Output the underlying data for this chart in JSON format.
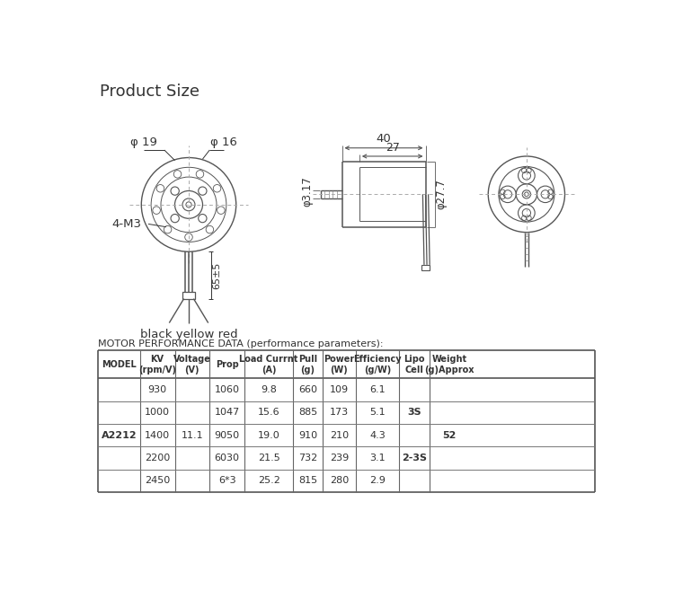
{
  "title": "Product Size",
  "bg_color": "#ffffff",
  "table_title": "MOTOR PERFORMANCE DATA (performance parameters):",
  "col_headers": [
    "MODEL",
    "KV\n(rpm/V)",
    "Voltage\n(V)",
    "Prop",
    "Load Currnt\n(A)",
    "Pull\n(g)",
    "Power\n(W)",
    "Efficiency\n(g/W)",
    "Lipo\nCell",
    "Weight\n(g)Approx"
  ],
  "table_data": [
    [
      "",
      "930",
      "",
      "1060",
      "9.8",
      "660",
      "109",
      "6.1",
      "",
      ""
    ],
    [
      "",
      "1000",
      "",
      "1047",
      "15.6",
      "885",
      "173",
      "5.1",
      "3S",
      ""
    ],
    [
      "A2212",
      "1400",
      "11.1",
      "9050",
      "19.0",
      "910",
      "210",
      "4.3",
      "",
      "52"
    ],
    [
      "",
      "2200",
      "",
      "6030",
      "21.5",
      "732",
      "239",
      "3.1",
      "2-3S",
      ""
    ],
    [
      "",
      "2450",
      "",
      "6*3",
      "25.2",
      "815",
      "280",
      "2.9",
      "",
      ""
    ]
  ],
  "phi19": "φ 19",
  "phi16": "φ 16",
  "four_m3": "4-M3",
  "wire_label": "black yellow red",
  "length_65": "65±5",
  "phi3_17": "φ3.17",
  "dim_40": "40",
  "dim_27": "27",
  "phi27_7": "φ27.7",
  "line_color": "#555555",
  "text_color": "#333333"
}
